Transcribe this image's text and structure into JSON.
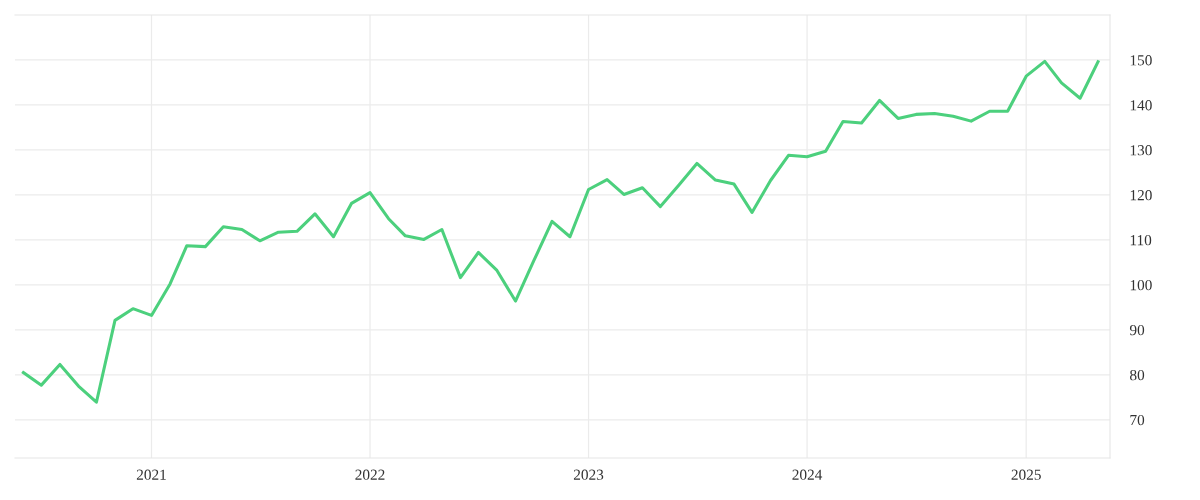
{
  "chart_data": {
    "type": "line",
    "x": [
      "2020-06",
      "2020-07",
      "2020-08",
      "2020-09",
      "2020-10",
      "2020-11",
      "2020-12",
      "2021-01",
      "2021-02",
      "2021-03",
      "2021-04",
      "2021-05",
      "2021-06",
      "2021-07",
      "2021-08",
      "2021-09",
      "2021-10",
      "2021-11",
      "2021-12",
      "2022-01",
      "2022-02",
      "2022-03",
      "2022-04",
      "2022-05",
      "2022-06",
      "2022-07",
      "2022-08",
      "2022-09",
      "2022-10",
      "2022-11",
      "2022-12",
      "2023-01",
      "2023-02",
      "2023-03",
      "2023-04",
      "2023-05",
      "2023-06",
      "2023-07",
      "2023-08",
      "2023-09",
      "2023-10",
      "2023-11",
      "2023-12",
      "2024-01",
      "2024-02",
      "2024-03",
      "2024-04",
      "2024-05",
      "2024-06",
      "2024-07",
      "2024-08",
      "2024-09",
      "2024-10",
      "2024-11",
      "2024-12",
      "2025-01",
      "2025-02",
      "2025-03",
      "2025-04",
      "2025-05"
    ],
    "series": [
      {
        "color": "#4cd07d",
        "values": [
          80.5,
          77.7,
          82.3,
          77.5,
          73.9,
          92.1,
          94.7,
          93.2,
          100.2,
          108.7,
          108.5,
          112.9,
          112.3,
          109.8,
          111.7,
          111.9,
          115.8,
          110.7,
          118.1,
          120.5,
          114.7,
          110.9,
          110.1,
          112.3,
          101.6,
          107.2,
          103.2,
          96.4,
          105.2,
          114.1,
          110.7,
          121.2,
          123.4,
          120.1,
          121.6,
          117.4,
          122.2,
          127.0,
          123.3,
          122.4,
          116.1,
          123.2,
          128.8,
          128.5,
          129.7,
          136.3,
          136.0,
          141.0,
          137.0,
          137.9,
          138.1,
          137.5,
          136.4,
          138.6,
          138.6,
          146.4,
          149.7,
          144.9,
          141.5,
          149.6
        ]
      }
    ],
    "xlim": [
      "2020-05-18",
      "2025-05-21"
    ],
    "xticks": [
      "2021",
      "2022",
      "2023",
      "2024",
      "2025"
    ],
    "ylim": [
      61.5,
      160
    ],
    "yticks": [
      70,
      80,
      90,
      100,
      110,
      120,
      130,
      140,
      150
    ],
    "grid": true,
    "marker": "none",
    "line_style": "solid"
  }
}
